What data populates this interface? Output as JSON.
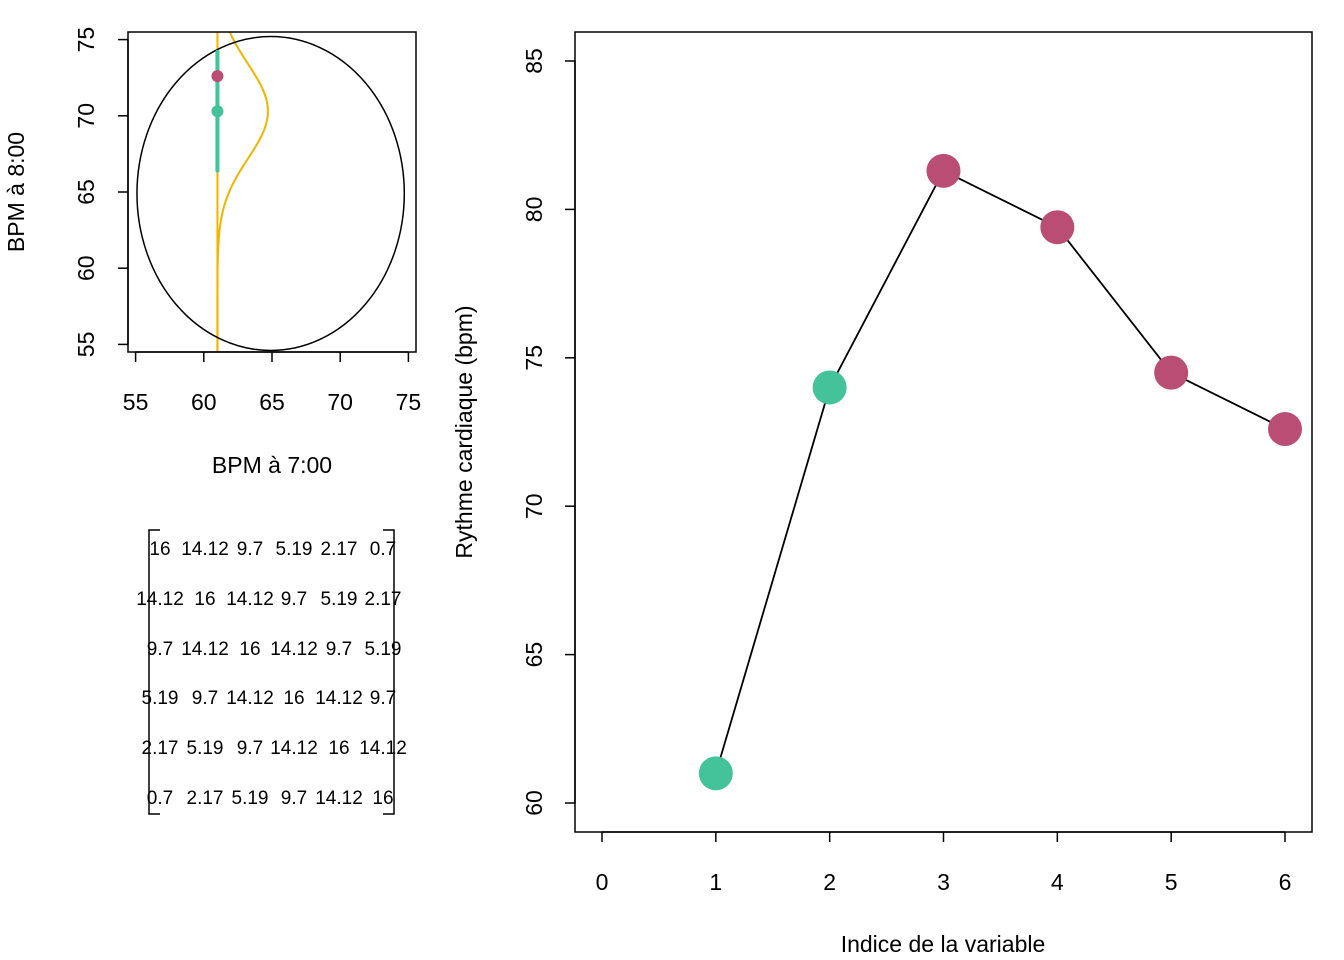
{
  "chart_data": [
    {
      "type": "scatter",
      "xlabel": "BPM à 7:00",
      "ylabel": "BPM à 8:00",
      "xlim": [
        55,
        75
      ],
      "ylim": [
        55,
        75
      ],
      "xticks": [
        "55",
        "60",
        "65",
        "70",
        "75"
      ],
      "yticks": [
        "55",
        "60",
        "65",
        "70",
        "75"
      ],
      "fixed_x": 61,
      "observed_point": {
        "x": 61,
        "y": 72.6
      },
      "predicted_point": {
        "x": 61,
        "y": 70.3
      },
      "interval": {
        "x": 61,
        "low": 66.4,
        "high": 74.2
      },
      "conditional_density": {
        "x_base": 61,
        "mean": 70.3,
        "sd": 3.1,
        "peak_width": 3.7
      },
      "ellipse": {
        "center": [
          64.9,
          64.9
        ],
        "radius_x": 9.8,
        "radius_y": 10.3
      },
      "colors": {
        "observed": "#B94D74",
        "predicted": "#44C29A",
        "density": "#F0B400",
        "ellipse": "#000000"
      },
      "grid": false
    },
    {
      "type": "table",
      "rows": [
        [
          "16",
          "14.12",
          "9.7",
          "5.19",
          "2.17",
          "0.7"
        ],
        [
          "14.12",
          "16",
          "14.12",
          "9.7",
          "5.19",
          "2.17"
        ],
        [
          "9.7",
          "14.12",
          "16",
          "14.12",
          "9.7",
          "5.19"
        ],
        [
          "5.19",
          "9.7",
          "14.12",
          "16",
          "14.12",
          "9.7"
        ],
        [
          "2.17",
          "5.19",
          "9.7",
          "14.12",
          "16",
          "14.12"
        ],
        [
          "0.7",
          "2.17",
          "5.19",
          "9.7",
          "14.12",
          "16"
        ]
      ]
    },
    {
      "type": "line",
      "xlabel": "Indice de la variable",
      "ylabel": "Rythme cardiaque (bpm)",
      "xlim": [
        0,
        6
      ],
      "ylim": [
        60,
        85
      ],
      "xticks": [
        "0",
        "1",
        "2",
        "3",
        "4",
        "5",
        "6"
      ],
      "yticks": [
        "60",
        "65",
        "70",
        "75",
        "80",
        "85"
      ],
      "points": [
        {
          "x": 1,
          "y": 61.0,
          "group": "observed"
        },
        {
          "x": 2,
          "y": 74.0,
          "group": "observed"
        },
        {
          "x": 3,
          "y": 81.3,
          "group": "predicted"
        },
        {
          "x": 4,
          "y": 79.4,
          "group": "predicted"
        },
        {
          "x": 5,
          "y": 74.5,
          "group": "predicted"
        },
        {
          "x": 6,
          "y": 72.6,
          "group": "predicted"
        }
      ],
      "colors": {
        "observed": "#44C29A",
        "predicted": "#B94D74",
        "line": "#000000"
      },
      "grid": false
    }
  ]
}
